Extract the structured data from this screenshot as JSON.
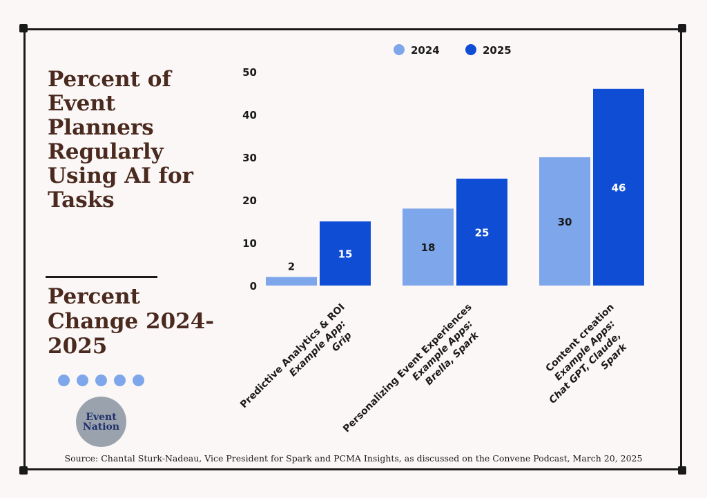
{
  "title": "Percent of Event Planners Regularly Using AI for Tasks",
  "subtitle": "Percent Change 2024-2025",
  "logo": {
    "line1": "Event",
    "line2": "Nation"
  },
  "source": "Source: Chantal Sturk-Nadeau, Vice President for Spark and PCMA Insights, as discussed on the Convene Podcast, March 20, 2025",
  "colors": {
    "series_2024": "#7ea6ea",
    "series_2025": "#0f4ed4",
    "title": "#4a2a1f",
    "frame": "#1a1a1a"
  },
  "chart_data": {
    "type": "bar",
    "title": "Percent of Event Planners Regularly Using AI for Tasks",
    "subtitle": "Percent Change 2024-2025",
    "categories": [
      [
        "Predictive Analytics & ROI",
        "Example App:",
        "Grip"
      ],
      [
        "Personalizing Event Experiences",
        "Example Apps:",
        "Brella, Spark"
      ],
      [
        "Content creation",
        "Example Apps:",
        "Chat GPT, Claude,",
        "Spark"
      ]
    ],
    "series": [
      {
        "name": "2024",
        "values": [
          2,
          18,
          30
        ],
        "color": "#7ea6ea"
      },
      {
        "name": "2025",
        "values": [
          15,
          25,
          46
        ],
        "color": "#0f4ed4"
      }
    ],
    "yticks": [
      0,
      10,
      20,
      30,
      40,
      50
    ],
    "ylim": [
      0,
      50
    ],
    "legend": "top",
    "grid": false
  }
}
